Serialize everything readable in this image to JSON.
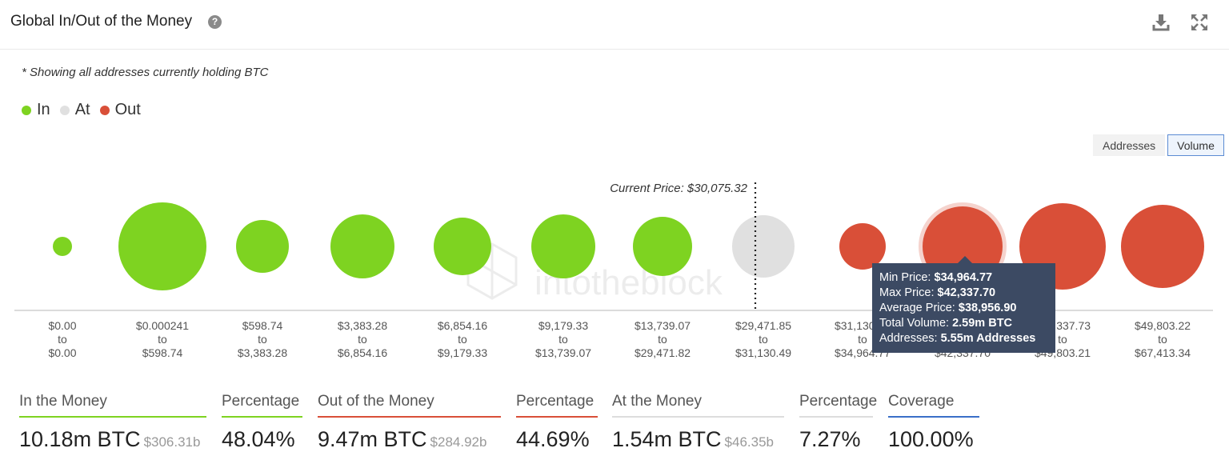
{
  "header": {
    "title": "Global In/Out of the Money",
    "help_glyph": "?"
  },
  "note": "* Showing all addresses currently holding BTC",
  "legend": [
    {
      "label": "In",
      "color": "#7ed321"
    },
    {
      "label": "At",
      "color": "#e0e0e0"
    },
    {
      "label": "Out",
      "color": "#d94f38"
    }
  ],
  "toggle": {
    "addresses_label": "Addresses",
    "volume_label": "Volume",
    "active": "Volume"
  },
  "watermark": "intotheblock",
  "chart_data": {
    "type": "bubble",
    "current_price_label": "Current Price: $30,075.32",
    "bubble_size_metric": "Volume",
    "buckets": [
      {
        "from": "$0.00",
        "to": "$0.00",
        "status": "In"
      },
      {
        "from": "$0.000241",
        "to": "$598.74",
        "status": "In"
      },
      {
        "from": "$598.74",
        "to": "$3,383.28",
        "status": "In"
      },
      {
        "from": "$3,383.28",
        "to": "$6,854.16",
        "status": "In"
      },
      {
        "from": "$6,854.16",
        "to": "$9,179.33",
        "status": "In"
      },
      {
        "from": "$9,179.33",
        "to": "$13,739.07",
        "status": "In"
      },
      {
        "from": "$13,739.07",
        "to": "$29,471.82",
        "status": "In"
      },
      {
        "from": "$29,471.85",
        "to": "$31,130.49",
        "status": "At"
      },
      {
        "from": "$31,130.49",
        "to": "$34,964.77",
        "status": "Out"
      },
      {
        "from": "$34,964.77",
        "to": "$42,337.70",
        "status": "Out"
      },
      {
        "from": "$42,337.73",
        "to": "$49,803.21",
        "status": "Out"
      },
      {
        "from": "$49,803.22",
        "to": "$67,413.34",
        "status": "Out"
      }
    ],
    "to_word": "to",
    "colors": {
      "In": "#7ed321",
      "At": "#e0e0e0",
      "Out": "#d94f38"
    }
  },
  "tooltip": {
    "rows": [
      {
        "label": "Min Price: ",
        "value": "$34,964.77"
      },
      {
        "label": "Max Price: ",
        "value": "$42,337.70"
      },
      {
        "label": "Average Price: ",
        "value": "$38,956.90"
      },
      {
        "label": "Total Volume: ",
        "value": "2.59m BTC"
      },
      {
        "label": "Addresses: ",
        "value": "5.55m Addresses"
      }
    ]
  },
  "stats": {
    "in_money": {
      "label": "In the Money",
      "value": "10.18m BTC",
      "sub": "$306.31b",
      "color": "#7ed321"
    },
    "in_pct": {
      "label": "Percentage",
      "value": "48.04%",
      "color": "#7ed321"
    },
    "out_money": {
      "label": "Out of the Money",
      "value": "9.47m BTC",
      "sub": "$284.92b",
      "color": "#d94f38"
    },
    "out_pct": {
      "label": "Percentage",
      "value": "44.69%",
      "color": "#d94f38"
    },
    "at_money": {
      "label": "At the Money",
      "value": "1.54m BTC",
      "sub": "$46.35b",
      "color": "#dddddd"
    },
    "at_pct": {
      "label": "Percentage",
      "value": "7.27%",
      "color": "#dddddd"
    },
    "coverage": {
      "label": "Coverage",
      "value": "100.00%",
      "color": "#3a6fc8"
    }
  }
}
